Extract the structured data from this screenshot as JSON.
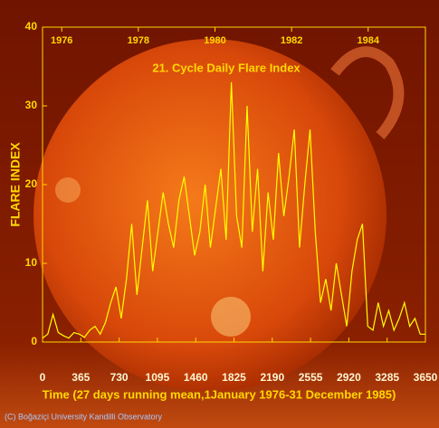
{
  "chart_data": {
    "type": "line",
    "title": "21. Cycle Daily Flare Index",
    "ylabel": "FLARE INDEX",
    "xlabel": "Time (27 days running mean,1January 1976-31 December 1985)",
    "credit": "(C) Boğaziçi University Kandilli Observatory",
    "xlim": [
      0,
      3650
    ],
    "ylim": [
      0,
      40
    ],
    "xticks": [
      0,
      365,
      730,
      1095,
      1460,
      1825,
      2190,
      2555,
      2920,
      3285,
      3650
    ],
    "yticks": [
      0,
      10,
      20,
      30,
      40
    ],
    "x2ticks": [
      {
        "value": 183,
        "label": "1976"
      },
      {
        "value": 913,
        "label": "1978"
      },
      {
        "value": 1644,
        "label": "1980"
      },
      {
        "value": 2374,
        "label": "1982"
      },
      {
        "value": 3104,
        "label": "1984"
      }
    ],
    "series": [
      {
        "color": "#ffff00",
        "x": [
          0,
          50,
          100,
          150,
          200,
          250,
          300,
          350,
          400,
          450,
          500,
          550,
          600,
          650,
          700,
          750,
          800,
          850,
          900,
          950,
          1000,
          1050,
          1100,
          1150,
          1200,
          1250,
          1300,
          1350,
          1400,
          1450,
          1500,
          1550,
          1600,
          1650,
          1700,
          1750,
          1800,
          1850,
          1900,
          1950,
          2000,
          2050,
          2100,
          2150,
          2200,
          2250,
          2300,
          2350,
          2400,
          2450,
          2500,
          2550,
          2600,
          2650,
          2700,
          2750,
          2800,
          2850,
          2900,
          2950,
          3000,
          3050,
          3100,
          3150,
          3200,
          3250,
          3300,
          3350,
          3400,
          3450,
          3500,
          3550,
          3600,
          3650
        ],
        "values": [
          0.5,
          1,
          3.5,
          1.2,
          0.8,
          0.5,
          1.2,
          1,
          0.6,
          1.5,
          2,
          1,
          2.5,
          5,
          7,
          3,
          8,
          15,
          6,
          12,
          18,
          9,
          14,
          19,
          15,
          12,
          18,
          21,
          16,
          11,
          14,
          20,
          12,
          17,
          22,
          13,
          33,
          16,
          12,
          30,
          14,
          22,
          9,
          19,
          13,
          24,
          16,
          21,
          27,
          12,
          20,
          27,
          14,
          5,
          8,
          4,
          10,
          6,
          2,
          9,
          13,
          15,
          2,
          1.5,
          5,
          2,
          4,
          1.5,
          3,
          5,
          2,
          3,
          1,
          1
        ]
      }
    ]
  }
}
